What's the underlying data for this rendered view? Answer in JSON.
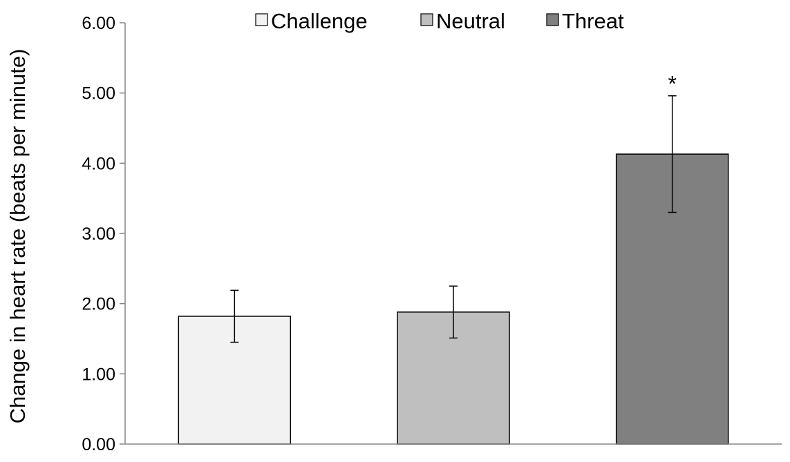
{
  "chart_data": {
    "type": "bar",
    "title": "",
    "xlabel": "",
    "ylabel": "Change in heart rate (beats per minute)",
    "ylim": [
      0,
      6
    ],
    "yticks": [
      0,
      1,
      2,
      3,
      4,
      5,
      6
    ],
    "ytick_labels": [
      "0.00",
      "1.00",
      "2.00",
      "3.00",
      "4.00",
      "5.00",
      "6.00"
    ],
    "grid": false,
    "legend_position": "top",
    "series": [
      {
        "name": "Challenge",
        "value": 1.82,
        "error": 0.37,
        "color": "#f2f2f2",
        "annotation": ""
      },
      {
        "name": "Neutral",
        "value": 1.88,
        "error": 0.37,
        "color": "#bfbfbf",
        "annotation": ""
      },
      {
        "name": "Threat",
        "value": 4.13,
        "error": 0.83,
        "color": "#808080",
        "annotation": "*"
      }
    ]
  }
}
